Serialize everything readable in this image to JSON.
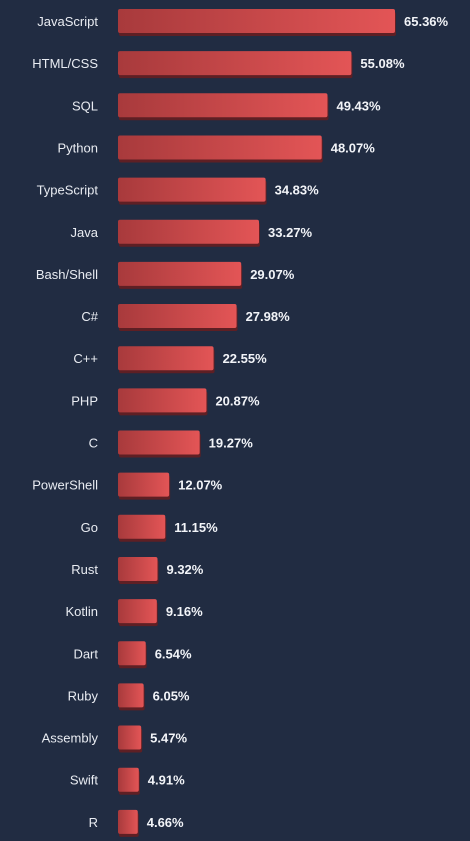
{
  "chart_data": {
    "type": "bar",
    "orientation": "horizontal",
    "categories": [
      "JavaScript",
      "HTML/CSS",
      "SQL",
      "Python",
      "TypeScript",
      "Java",
      "Bash/Shell",
      "C#",
      "C++",
      "PHP",
      "C",
      "PowerShell",
      "Go",
      "Rust",
      "Kotlin",
      "Dart",
      "Ruby",
      "Assembly",
      "Swift",
      "R"
    ],
    "values": [
      65.36,
      55.08,
      49.43,
      48.07,
      34.83,
      33.27,
      29.07,
      27.98,
      22.55,
      20.87,
      19.27,
      12.07,
      11.15,
      9.32,
      9.16,
      6.54,
      6.05,
      5.47,
      4.91,
      4.66
    ],
    "value_labels": [
      "65.36%",
      "55.08%",
      "49.43%",
      "48.07%",
      "34.83%",
      "33.27%",
      "29.07%",
      "27.98%",
      "22.55%",
      "20.87%",
      "19.27%",
      "12.07%",
      "11.15%",
      "9.32%",
      "9.16%",
      "6.54%",
      "6.05%",
      "5.47%",
      "4.91%",
      "4.66%"
    ],
    "unit": "%",
    "xlim": [
      0,
      65.36
    ],
    "grid": false,
    "legend": "none"
  },
  "colors": {
    "background": "#212c42",
    "bar_start": "#a83a3c",
    "bar_end": "#e35556",
    "bar_shadow": "#5e1f24",
    "category_text": "#e9ecf2",
    "value_text": "#f2f4f8"
  }
}
